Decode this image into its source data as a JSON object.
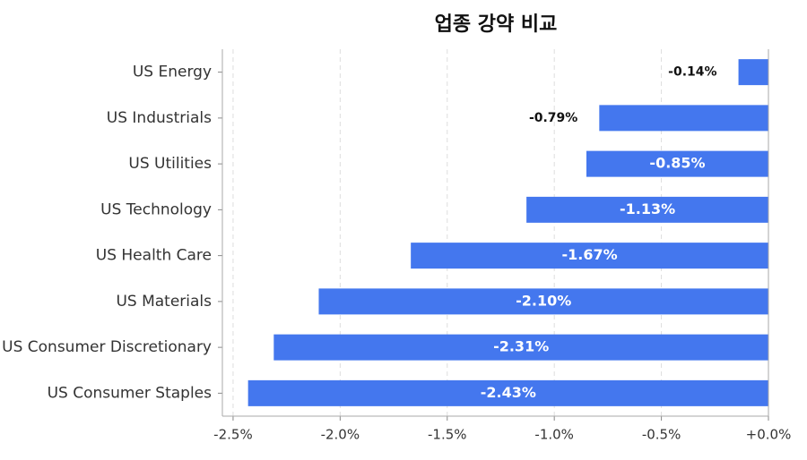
{
  "chart_data": {
    "type": "hbar",
    "title": "업종 강약 비교",
    "categories": [
      "US Energy",
      "US Industrials",
      "US Utilities",
      "US Technology",
      "US Health Care",
      "US Materials",
      "US Consumer Discretionary",
      "US Consumer Staples"
    ],
    "values": [
      -0.14,
      -0.79,
      -0.85,
      -1.13,
      -1.67,
      -2.1,
      -2.31,
      -2.43
    ],
    "value_labels": [
      "-0.14%",
      "-0.79%",
      "-0.85%",
      "-1.13%",
      "-1.67%",
      "-2.10%",
      "-2.31%",
      "-2.43%"
    ],
    "color": "#4477ee",
    "xlim": [
      -2.55,
      0
    ],
    "xticks": [
      {
        "value": -2.5,
        "label": "-2.5%"
      },
      {
        "value": -2.0,
        "label": "-2.0%"
      },
      {
        "value": -1.5,
        "label": "-1.5%"
      },
      {
        "value": -1.0,
        "label": "-1.0%"
      },
      {
        "value": -0.5,
        "label": "-0.5%"
      },
      {
        "value": 0,
        "label": "+0.0%"
      }
    ],
    "grid": true
  }
}
